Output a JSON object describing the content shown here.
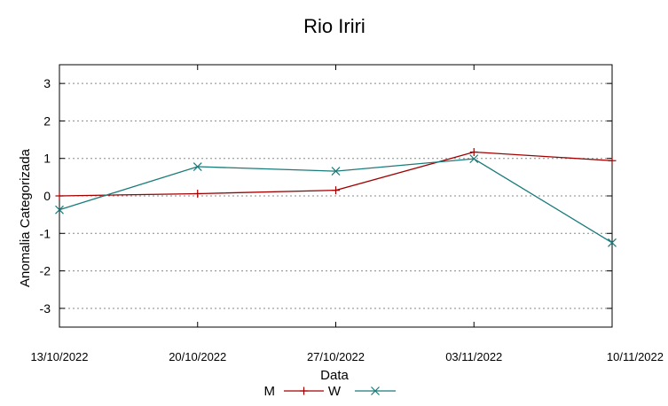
{
  "chart_data": {
    "type": "line",
    "title": "Rio Iriri",
    "xlabel": "Data",
    "ylabel": "Anomalia Categorizada",
    "x": [
      "13/10/2022",
      "20/10/2022",
      "27/10/2022",
      "03/11/2022",
      "10/11/2022"
    ],
    "ylim": [
      -3.5,
      3.5
    ],
    "yticks": [
      -3,
      -2,
      -1,
      0,
      1,
      2,
      3
    ],
    "grid": "y-dotted",
    "legend": "bottom-center",
    "series": [
      {
        "name": "M",
        "color": "#a00000",
        "marker": "plus",
        "values": [
          0.0,
          0.06,
          0.15,
          1.17,
          0.94
        ]
      },
      {
        "name": "W",
        "color": "#1a7a7a",
        "marker": "x",
        "values": [
          -0.37,
          0.78,
          0.66,
          0.99,
          -1.25
        ]
      }
    ]
  }
}
